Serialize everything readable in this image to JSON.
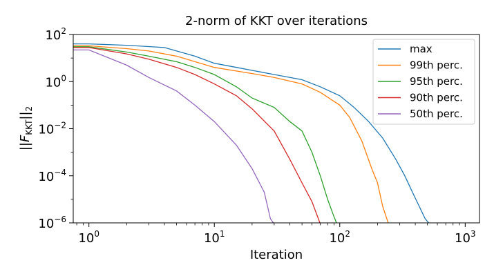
{
  "chart_data": {
    "type": "line",
    "title": "2-norm of KKT over iterations",
    "xlabel": "Iteration",
    "ylabel": {
      "pre": "||",
      "main": "F",
      "sub": "KKT",
      "post": "||",
      "post_sub": "2"
    },
    "xscale": "log",
    "yscale": "log",
    "xlim": [
      0.75,
      1300
    ],
    "ylim": [
      1e-06,
      100
    ],
    "x_ticks": [
      {
        "value": 1,
        "base": "10",
        "exp": "0"
      },
      {
        "value": 10,
        "base": "10",
        "exp": "1"
      },
      {
        "value": 100,
        "base": "10",
        "exp": "2"
      },
      {
        "value": 1000,
        "base": "10",
        "exp": "3"
      }
    ],
    "y_ticks": [
      {
        "value": 100,
        "base": "10",
        "exp": "2"
      },
      {
        "value": 1,
        "base": "10",
        "exp": "0"
      },
      {
        "value": 0.01,
        "base": "10",
        "exp": "−2"
      },
      {
        "value": 0.0001,
        "base": "10",
        "exp": "−4"
      },
      {
        "value": 1e-06,
        "base": "10",
        "exp": "−6"
      }
    ],
    "legend_position": "top-right",
    "grid": false,
    "series": [
      {
        "name": "max",
        "color": "#1f77b4",
        "points": [
          [
            0.75,
            40
          ],
          [
            1,
            40
          ],
          [
            2,
            35
          ],
          [
            4,
            28
          ],
          [
            5,
            20
          ],
          [
            7,
            12
          ],
          [
            10,
            6
          ],
          [
            15,
            4
          ],
          [
            20,
            3
          ],
          [
            30,
            2
          ],
          [
            50,
            1.2
          ],
          [
            70,
            0.6
          ],
          [
            100,
            0.25
          ],
          [
            130,
            0.08
          ],
          [
            170,
            0.02
          ],
          [
            220,
            0.004
          ],
          [
            280,
            0.0005
          ],
          [
            330,
            0.0001
          ],
          [
            380,
            2e-05
          ],
          [
            430,
            5e-06
          ],
          [
            480,
            1.5e-06
          ],
          [
            520,
            9e-07
          ],
          [
            600,
            7e-07
          ]
        ]
      },
      {
        "name": "99th perc.",
        "color": "#ff7f0e",
        "points": [
          [
            0.75,
            33
          ],
          [
            1,
            33
          ],
          [
            2,
            25
          ],
          [
            3,
            20
          ],
          [
            5,
            12
          ],
          [
            7,
            7
          ],
          [
            10,
            4
          ],
          [
            20,
            2.2
          ],
          [
            30,
            1.5
          ],
          [
            50,
            0.8
          ],
          [
            70,
            0.35
          ],
          [
            100,
            0.1
          ],
          [
            120,
            0.03
          ],
          [
            150,
            0.003
          ],
          [
            180,
            0.0002
          ],
          [
            200,
            5e-05
          ],
          [
            220,
            5e-06
          ],
          [
            245,
            9e-07
          ]
        ]
      },
      {
        "name": "95th perc.",
        "color": "#2ca02c",
        "points": [
          [
            0.75,
            30
          ],
          [
            1,
            30
          ],
          [
            2,
            18
          ],
          [
            3,
            12
          ],
          [
            5,
            7
          ],
          [
            7,
            4
          ],
          [
            10,
            2
          ],
          [
            15,
            0.6
          ],
          [
            20,
            0.2
          ],
          [
            30,
            0.08
          ],
          [
            40,
            0.02
          ],
          [
            50,
            0.008
          ],
          [
            60,
            0.001
          ],
          [
            70,
            0.0001
          ],
          [
            80,
            1e-05
          ],
          [
            90,
            1.8e-06
          ],
          [
            95,
            9e-07
          ]
        ]
      },
      {
        "name": "90th perc.",
        "color": "#d62728",
        "points": [
          [
            0.75,
            28
          ],
          [
            1,
            28
          ],
          [
            2,
            15
          ],
          [
            3,
            9
          ],
          [
            5,
            4
          ],
          [
            7,
            2
          ],
          [
            10,
            0.8
          ],
          [
            15,
            0.25
          ],
          [
            20,
            0.07
          ],
          [
            30,
            0.008
          ],
          [
            40,
            0.0005
          ],
          [
            50,
            5e-05
          ],
          [
            60,
            8e-06
          ],
          [
            70,
            9e-07
          ]
        ]
      },
      {
        "name": "50th perc.",
        "color": "#9467bd",
        "points": [
          [
            0.75,
            22
          ],
          [
            1,
            22
          ],
          [
            2,
            5
          ],
          [
            3,
            1.5
          ],
          [
            5,
            0.4
          ],
          [
            7,
            0.1
          ],
          [
            10,
            0.02
          ],
          [
            15,
            0.002
          ],
          [
            20,
            0.0002
          ],
          [
            25,
            2e-05
          ],
          [
            28,
            1.5e-06
          ],
          [
            30,
            9e-07
          ]
        ]
      }
    ]
  }
}
